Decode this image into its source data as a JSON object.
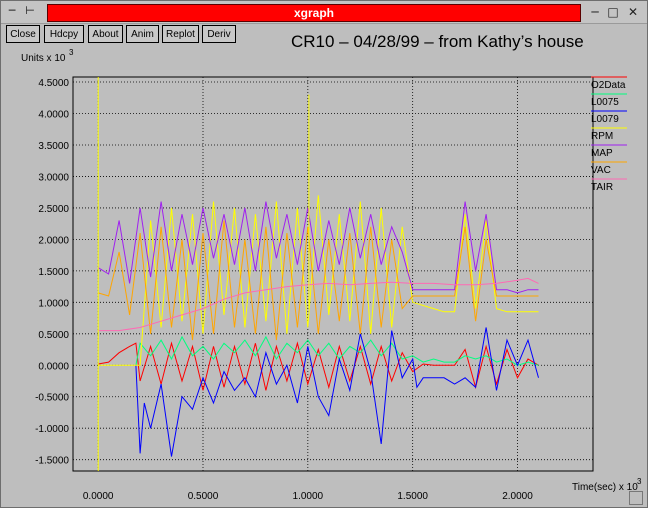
{
  "window": {
    "title": "xgraph",
    "controls": [
      "minimize-icon",
      "maximize-icon",
      "close-icon"
    ]
  },
  "toolbar": {
    "buttons": [
      "Close",
      "Hdcpy",
      "About",
      "Anim",
      "Replot",
      "Deriv"
    ]
  },
  "colors": {
    "O2Data": "#ff0000",
    "L0075": "#00ff7f",
    "L0079": "#0000ff",
    "RPM": "#ffff00",
    "MAP": "#a020f0",
    "VAC": "#ffa500",
    "TAIR": "#ff69b4"
  },
  "chart_data": {
    "type": "line",
    "title": "CR10 – 04/28/99 – from Kathy’s house",
    "ylabel_text": "Units x 10",
    "ylabel_exp": "3",
    "xlabel_text": "Time(sec) x 10",
    "xlabel_exp": "3",
    "xlim": [
      -0.12,
      2.36
    ],
    "ylim": [
      -1.68,
      4.58
    ],
    "xticks": [
      0.0,
      0.5,
      1.0,
      1.5,
      2.0
    ],
    "xtick_labels": [
      "0.0000",
      "0.5000",
      "1.0000",
      "1.5000",
      "2.0000"
    ],
    "yticks": [
      -1.5,
      -1.0,
      -0.5,
      0.0,
      0.5,
      1.0,
      1.5,
      2.0,
      2.5,
      3.0,
      3.5,
      4.0,
      4.5
    ],
    "ytick_labels": [
      "-1.5000",
      "-1.0000",
      "-0.5000",
      "0.0000",
      "0.5000",
      "1.0000",
      "1.5000",
      "2.0000",
      "2.5000",
      "3.0000",
      "3.5000",
      "4.0000",
      "4.5000"
    ],
    "grid": true,
    "legend_position": "right",
    "series": [
      {
        "name": "O2Data",
        "x": [
          0.0,
          0.05,
          0.1,
          0.15,
          0.18,
          0.2,
          0.25,
          0.3,
          0.35,
          0.4,
          0.45,
          0.5,
          0.55,
          0.6,
          0.65,
          0.7,
          0.75,
          0.8,
          0.85,
          0.9,
          0.95,
          1.0,
          1.05,
          1.1,
          1.15,
          1.2,
          1.25,
          1.3,
          1.35,
          1.4,
          1.45,
          1.5,
          1.55,
          1.6,
          1.7,
          1.75,
          1.8,
          1.85,
          1.9,
          1.95,
          2.0,
          2.05,
          2.1
        ],
        "y": [
          0.02,
          0.05,
          0.2,
          0.3,
          0.35,
          -0.25,
          0.3,
          -0.3,
          0.35,
          -0.25,
          0.3,
          -0.4,
          0.3,
          -0.35,
          0.3,
          -0.3,
          0.35,
          -0.4,
          0.3,
          -0.25,
          0.35,
          -0.3,
          0.25,
          -0.35,
          0.3,
          -0.25,
          0.3,
          -0.3,
          0.3,
          -0.25,
          0.2,
          -0.1,
          0.02,
          0.0,
          0.0,
          0.25,
          -0.35,
          0.3,
          -0.3,
          0.25,
          -0.2,
          0.1,
          0.0
        ]
      },
      {
        "name": "L0075",
        "x": [
          0.18,
          0.2,
          0.25,
          0.3,
          0.35,
          0.4,
          0.45,
          0.5,
          0.55,
          0.6,
          0.65,
          0.7,
          0.75,
          0.8,
          0.85,
          0.9,
          0.95,
          1.0,
          1.05,
          1.1,
          1.15,
          1.2,
          1.25,
          1.3,
          1.35,
          1.4,
          1.45,
          1.5,
          1.55,
          1.6,
          1.65,
          1.7,
          1.75,
          1.8,
          1.85,
          1.9,
          1.95,
          2.0,
          2.05,
          2.1
        ],
        "y": [
          0.0,
          0.35,
          0.15,
          0.4,
          0.1,
          0.45,
          0.15,
          0.3,
          0.1,
          0.35,
          0.2,
          0.4,
          0.15,
          0.45,
          0.1,
          0.35,
          0.2,
          0.4,
          0.15,
          0.35,
          0.1,
          0.3,
          0.2,
          0.4,
          0.15,
          0.35,
          0.1,
          0.15,
          0.05,
          0.1,
          0.05,
          0.05,
          0.15,
          0.1,
          0.15,
          0.05,
          0.1,
          0.0,
          0.05,
          0.0
        ]
      },
      {
        "name": "L0079",
        "x": [
          0.18,
          0.2,
          0.22,
          0.25,
          0.3,
          0.35,
          0.4,
          0.45,
          0.5,
          0.55,
          0.6,
          0.65,
          0.7,
          0.75,
          0.8,
          0.85,
          0.9,
          0.95,
          1.0,
          1.05,
          1.1,
          1.15,
          1.2,
          1.25,
          1.3,
          1.35,
          1.4,
          1.45,
          1.5,
          1.52,
          1.55,
          1.65,
          1.7,
          1.75,
          1.8,
          1.85,
          1.9,
          1.95,
          2.0,
          2.05,
          2.1
        ],
        "y": [
          0.0,
          -1.4,
          -0.6,
          -1.0,
          -0.3,
          -1.45,
          -0.5,
          -0.7,
          -0.2,
          -0.6,
          -0.1,
          -0.4,
          -0.2,
          -0.5,
          0.2,
          -0.3,
          0.0,
          -0.6,
          0.3,
          -0.5,
          -0.8,
          0.1,
          -0.4,
          0.5,
          -0.1,
          -1.25,
          0.55,
          -0.2,
          0.1,
          -0.35,
          -0.2,
          -0.2,
          -0.3,
          -0.2,
          -0.35,
          0.6,
          -0.4,
          0.4,
          0.0,
          0.4,
          -0.2
        ]
      },
      {
        "name": "RPM",
        "x": [
          0.0,
          0.2,
          0.25,
          0.3,
          0.35,
          0.4,
          0.45,
          0.5,
          0.55,
          0.6,
          0.65,
          0.7,
          0.75,
          0.8,
          0.85,
          0.9,
          0.95,
          1.0,
          1.05,
          1.1,
          1.15,
          1.2,
          1.25,
          1.3,
          1.35,
          1.4,
          1.45,
          1.5,
          1.55,
          1.6,
          1.65,
          1.7,
          1.75,
          1.8,
          1.85,
          1.9,
          1.95,
          2.0,
          2.05,
          2.1
        ],
        "y": [
          0.0,
          0.0,
          2.3,
          0.6,
          2.5,
          0.7,
          2.4,
          0.5,
          2.6,
          0.8,
          2.5,
          0.6,
          2.4,
          0.7,
          2.6,
          0.5,
          2.5,
          0.6,
          2.7,
          0.8,
          2.4,
          0.7,
          2.6,
          0.5,
          2.5,
          0.6,
          2.2,
          1.0,
          0.95,
          0.9,
          0.85,
          0.85,
          2.4,
          0.9,
          2.3,
          0.9,
          0.85,
          0.85,
          0.85,
          0.85
        ]
      },
      {
        "name": "MAP",
        "x": [
          0.0,
          0.05,
          0.1,
          0.15,
          0.2,
          0.25,
          0.3,
          0.35,
          0.4,
          0.45,
          0.5,
          0.55,
          0.6,
          0.65,
          0.7,
          0.75,
          0.8,
          0.85,
          0.9,
          0.95,
          1.0,
          1.05,
          1.1,
          1.15,
          1.2,
          1.25,
          1.3,
          1.35,
          1.4,
          1.45,
          1.5,
          1.55,
          1.6,
          1.65,
          1.7,
          1.75,
          1.8,
          1.85,
          1.9,
          1.95,
          2.0,
          2.05,
          2.1
        ],
        "y": [
          1.55,
          1.45,
          2.3,
          1.3,
          2.5,
          1.4,
          2.6,
          1.5,
          2.4,
          1.6,
          2.5,
          1.7,
          2.4,
          1.6,
          2.5,
          1.5,
          2.6,
          1.7,
          2.4,
          1.6,
          2.5,
          1.5,
          2.3,
          1.6,
          2.5,
          1.7,
          2.4,
          1.6,
          2.2,
          1.8,
          1.2,
          1.2,
          1.2,
          1.2,
          1.2,
          2.6,
          1.5,
          2.4,
          1.2,
          1.2,
          1.15,
          1.2,
          1.2
        ]
      },
      {
        "name": "VAC",
        "x": [
          0.0,
          0.05,
          0.1,
          0.15,
          0.2,
          0.25,
          0.3,
          0.35,
          0.4,
          0.45,
          0.5,
          0.55,
          0.6,
          0.65,
          0.7,
          0.75,
          0.8,
          0.85,
          0.9,
          0.95,
          1.0,
          1.05,
          1.1,
          1.15,
          1.2,
          1.25,
          1.3,
          1.35,
          1.4,
          1.45,
          1.5,
          1.55,
          1.6,
          1.65,
          1.7,
          1.75,
          1.8,
          1.85,
          1.9,
          1.95,
          2.0,
          2.05,
          2.1
        ],
        "y": [
          1.15,
          1.1,
          1.8,
          0.8,
          2.1,
          0.5,
          2.2,
          0.6,
          2.0,
          0.4,
          2.1,
          0.5,
          2.3,
          0.6,
          2.0,
          0.5,
          2.2,
          0.4,
          2.1,
          0.6,
          2.2,
          0.5,
          2.0,
          0.7,
          2.1,
          0.5,
          2.2,
          0.6,
          2.0,
          0.9,
          1.1,
          1.1,
          1.1,
          1.1,
          1.1,
          2.2,
          0.7,
          2.0,
          1.1,
          1.1,
          1.1,
          1.1,
          1.1
        ]
      },
      {
        "name": "TAIR",
        "x": [
          0.0,
          0.1,
          0.2,
          0.3,
          0.4,
          0.5,
          0.6,
          0.7,
          0.8,
          0.9,
          1.0,
          1.1,
          1.2,
          1.3,
          1.4,
          1.5,
          1.6,
          1.7,
          1.8,
          1.9,
          2.0,
          2.05,
          2.1
        ],
        "y": [
          0.55,
          0.55,
          0.6,
          0.7,
          0.8,
          0.9,
          1.05,
          1.15,
          1.2,
          1.25,
          1.28,
          1.3,
          1.28,
          1.3,
          1.32,
          1.3,
          1.3,
          1.28,
          1.28,
          1.3,
          1.35,
          1.38,
          1.3
        ]
      },
      {
        "name": "",
        "x": [
          0.0,
          0.0
        ],
        "y": [
          -1.68,
          4.58
        ],
        "color": "#ffff00"
      },
      {
        "name": "",
        "x": [
          1.005,
          1.005,
          1.005
        ],
        "y": [
          0.9,
          4.3,
          0.9
        ],
        "color": "#ffff00"
      }
    ]
  }
}
